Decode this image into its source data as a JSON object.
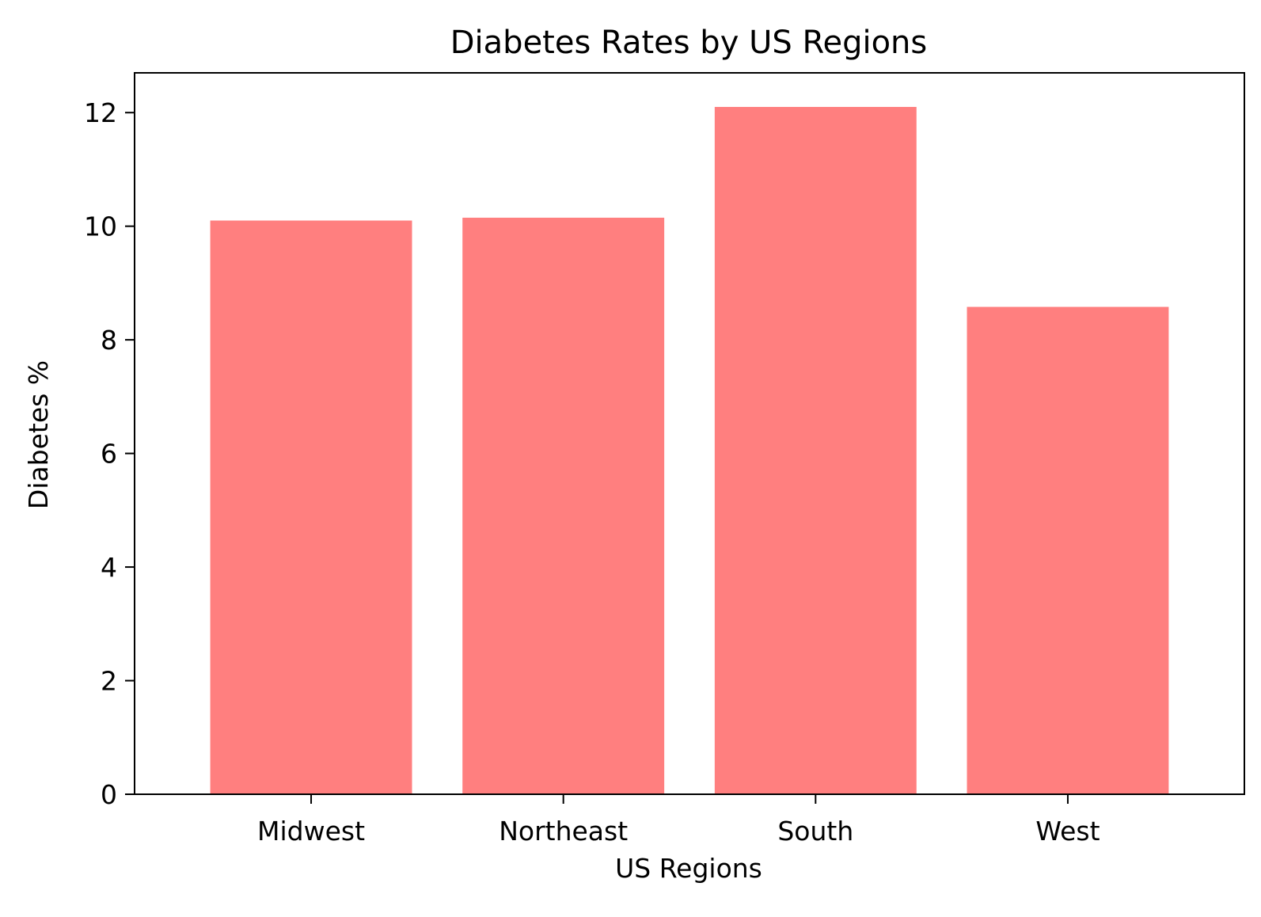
{
  "chart_data": {
    "type": "bar",
    "title": "Diabetes Rates by US Regions",
    "xlabel": "US Regions",
    "ylabel": "Diabetes %",
    "categories": [
      "Midwest",
      "Northeast",
      "South",
      "West"
    ],
    "values": [
      10.1,
      10.15,
      12.1,
      8.58
    ],
    "ylim": [
      0,
      12.7
    ],
    "yticks": [
      0,
      2,
      4,
      6,
      8,
      10,
      12
    ],
    "ytick_labels": [
      "0",
      "2",
      "4",
      "6",
      "8",
      "10",
      "12"
    ],
    "bar_color": "#ff7f7f",
    "grid": false,
    "legend": false
  }
}
